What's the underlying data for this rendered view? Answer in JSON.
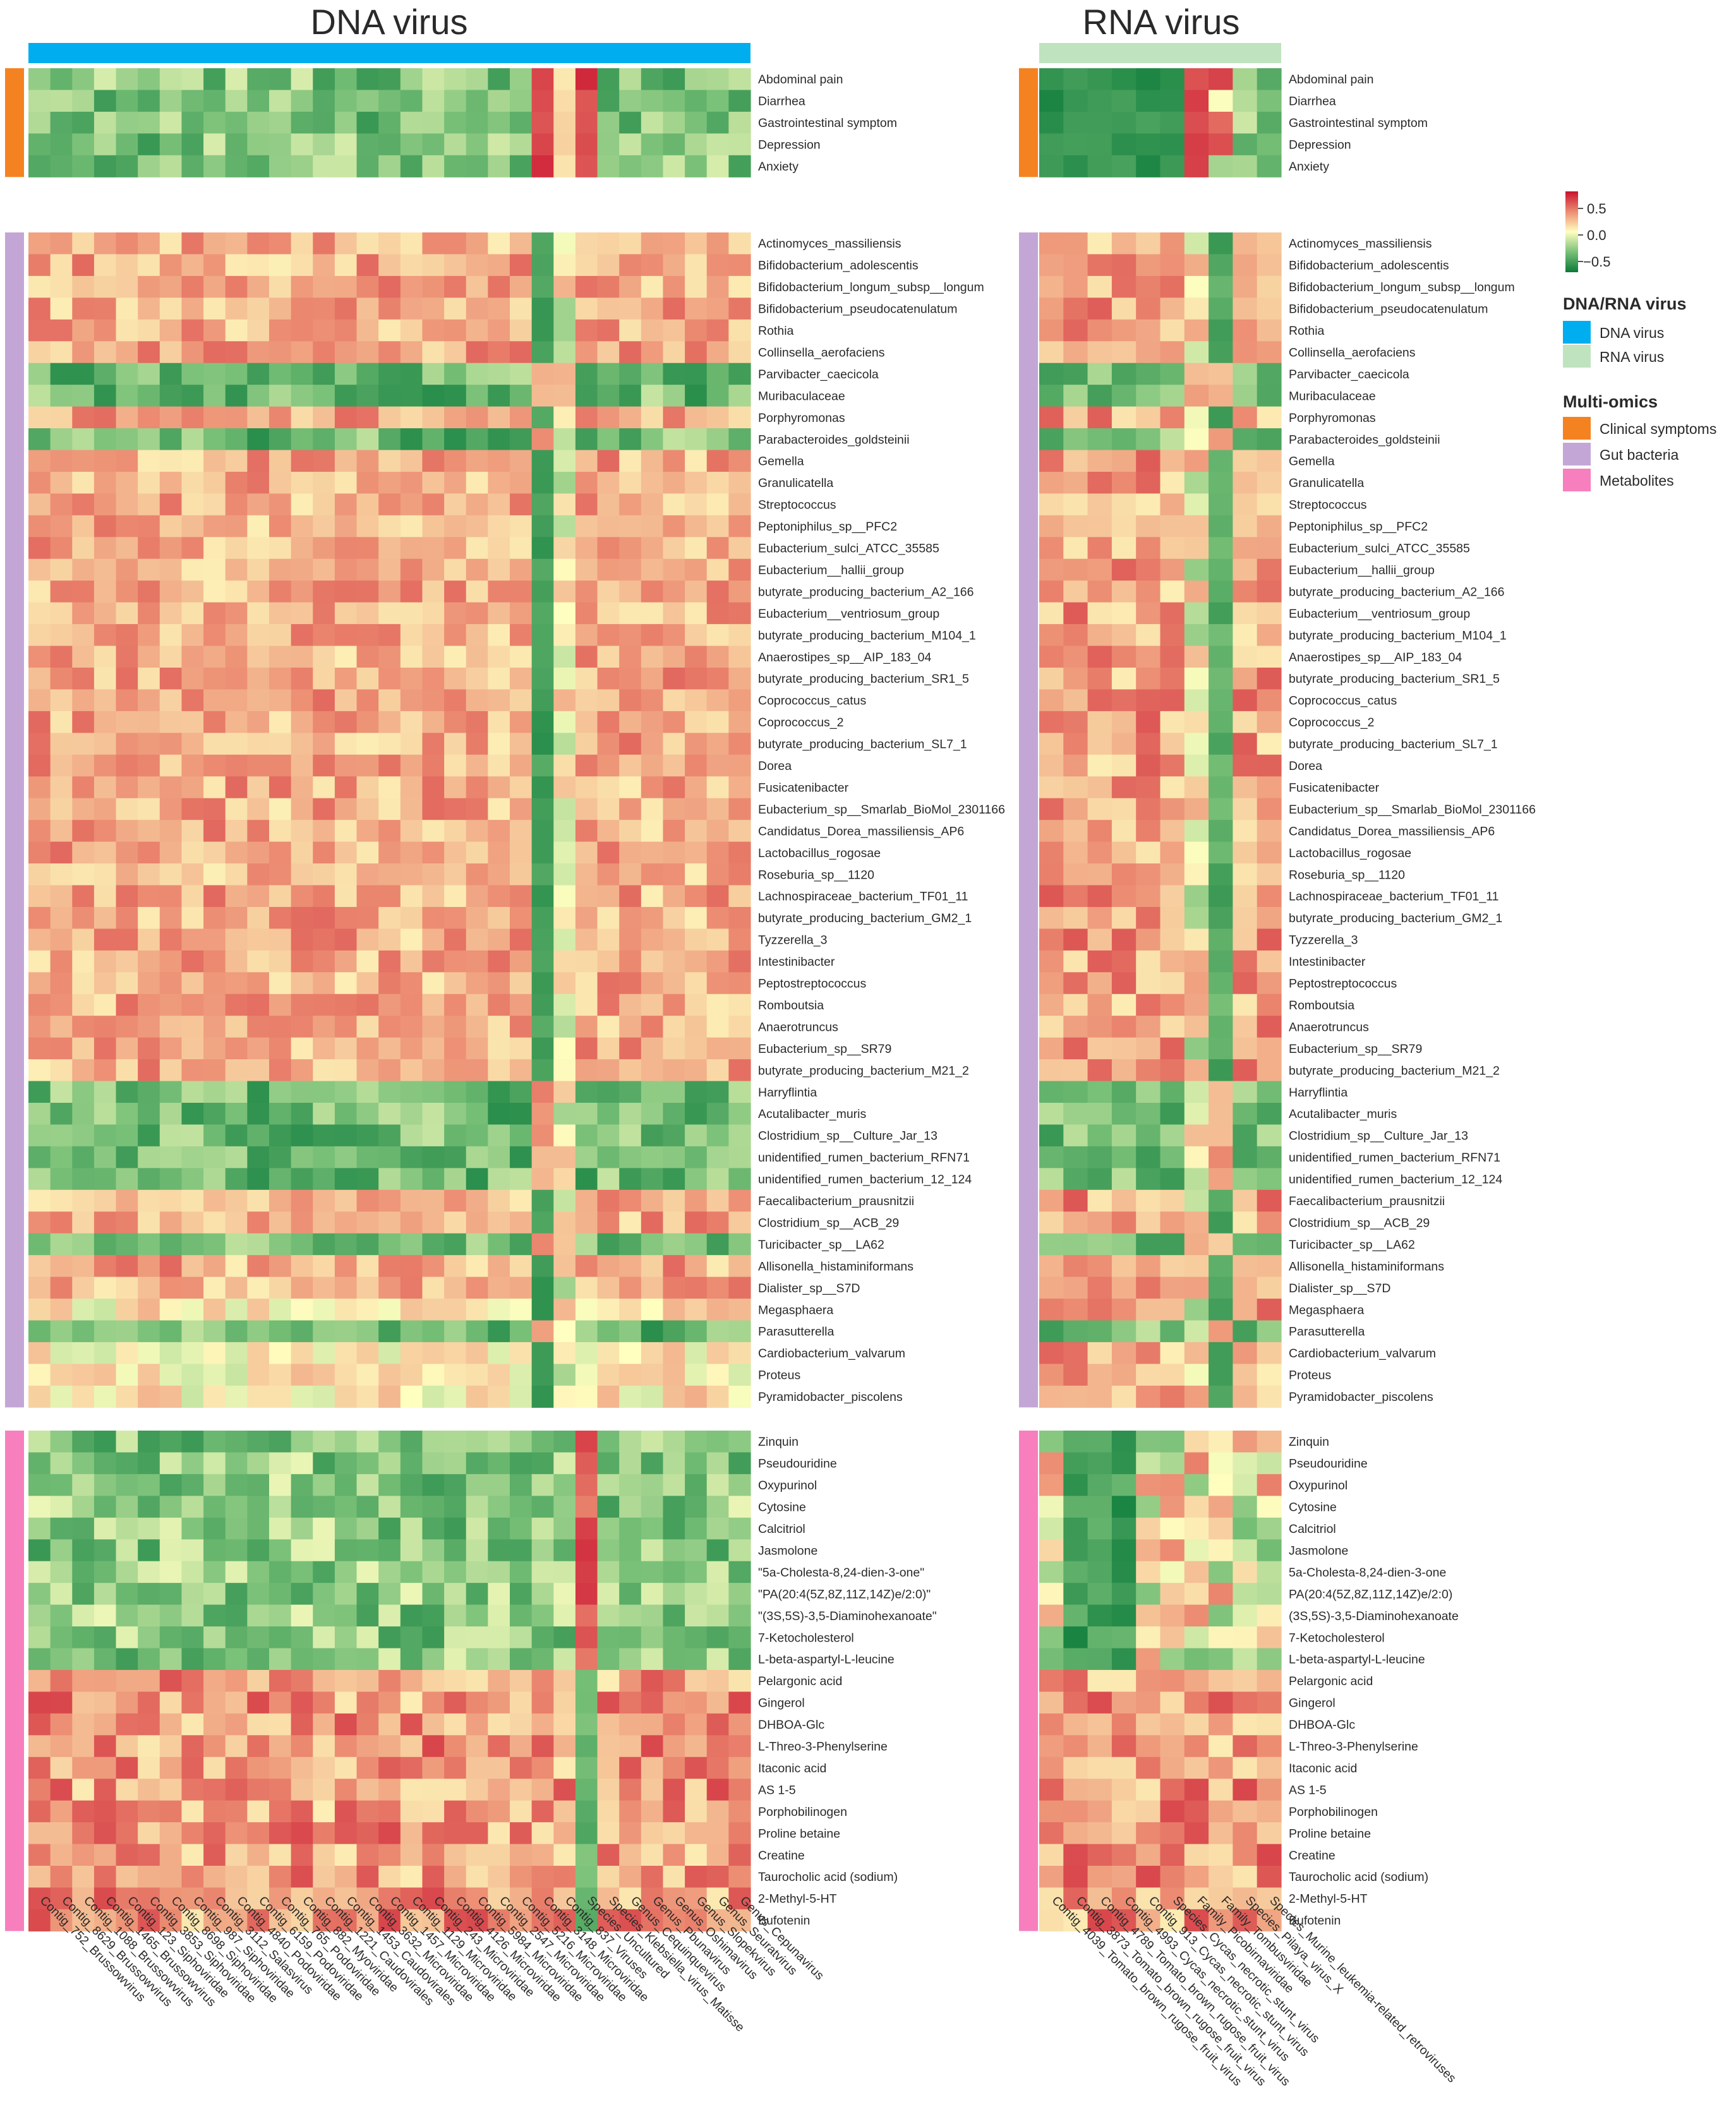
{
  "chart_data": [
    {
      "type": "heatmap",
      "title": "DNA virus",
      "columns": [
        "Contig_752_Brussowvirus",
        "Contig_8629_Brussowvirus",
        "Contig_1088_Brussowvirus",
        "Contig_1465_Brussowvirus",
        "Contig_123_Siphoviridae",
        "Contig_3853_Siphoviridae",
        "Contig_8698_Siphoviridae",
        "Contig_987_Siphoviridae",
        "Contig_3112_Salasvirus",
        "Contig_4840_Podoviridae",
        "Contig_6159_Podoviridae",
        "Contig_765_Podoviridae",
        "Contig_882_Myoviridae",
        "Contig_1221_Caudovirales",
        "Contig_1453_Caudovirales",
        "Contig_3632_Microviridae",
        "Contig_1457_Microviridae",
        "Contig_1129_Microviridae",
        "Contig_243_Microviridae",
        "Contig_4126_Microviridae",
        "Contig_5984_Microviridae",
        "Contig_2547_Microviridae",
        "Contig_5216_Microviridae",
        "Contig_3148_Microviridae",
        "Contig_837_Viruses",
        "Species_Uncultured",
        "Species_Klebsiella_virus_Matisse",
        "Genus_Cequinquevirus",
        "Genus_Pbunavirus",
        "Genus_Oshimavirus",
        "Genus_Slopekvirus",
        "Genus_Seuratvirus",
        "Genus_Cepunavirus"
      ]
    },
    {
      "type": "heatmap",
      "title": "RNA virus",
      "columns": [
        "Contig_4039_Tomato_brown_rugose_fruit_virus",
        "Contig_3873_Tomato_brown_rugose_fruit_virus",
        "Contig_4789_Tomato_brown_rugose_fruit_virus",
        "Contig_4993_Cycas_necrotic_stunt_virus",
        "Contig_913_Cycas_necrotic_stunt_virus",
        "Species_Cycas_necrotic_stunt_virus",
        "Family_Picobirnaviridae",
        "Family_Tombusviridae",
        "Species_Pilaya_virus_X",
        "Species_Murine_leukemia-related_retroviruses"
      ]
    }
  ],
  "rows": {
    "clinical": [
      "Abdominal pain",
      "Diarrhea",
      "Gastrointestinal symptom",
      "Depression",
      "Anxiety"
    ],
    "bacteria": [
      "Actinomyces_massiliensis",
      "Bifidobacterium_adolescentis",
      "Bifidobacterium_longum_subsp__longum",
      "Bifidobacterium_pseudocatenulatum",
      "Rothia",
      "Collinsella_aerofaciens",
      "Parvibacter_caecicola",
      "Muribaculaceae",
      "Porphyromonas",
      "Parabacteroides_goldsteinii",
      "Gemella",
      "Granulicatella",
      "Streptococcus",
      "Peptoniphilus_sp__PFC2",
      "Eubacterium_sulci_ATCC_35585",
      "Eubacterium__hallii_group",
      "butyrate_producing_bacterium_A2_166",
      "Eubacterium__ventriosum_group",
      "butyrate_producing_bacterium_M104_1",
      "Anaerostipes_sp__AIP_183_04",
      "butyrate_producing_bacterium_SR1_5",
      "Coprococcus_catus",
      "Coprococcus_2",
      "butyrate_producing_bacterium_SL7_1",
      "Dorea",
      "Fusicatenibacter",
      "Eubacterium_sp__Smarlab_BioMol_2301166",
      "Candidatus_Dorea_massiliensis_AP6",
      "Lactobacillus_rogosae",
      "Roseburia_sp__1120",
      "Lachnospiraceae_bacterium_TF01_11",
      "butyrate_producing_bacterium_GM2_1",
      "Tyzzerella_3",
      "Intestinibacter",
      "Peptostreptococcus",
      "Romboutsia",
      "Anaerotruncus",
      "Eubacterium_sp__SR79",
      "butyrate_producing_bacterium_M21_2",
      "Harryflintia",
      "Acutalibacter_muris",
      "Clostridium_sp__Culture_Jar_13",
      "unidentified_rumen_bacterium_RFN71",
      "unidentified_rumen_bacterium_12_124",
      "Faecalibacterium_prausnitzii",
      "Clostridium_sp__ACB_29",
      "Turicibacter_sp__LA62",
      "Allisonella_histaminiformans",
      "Dialister_sp__S7D",
      "Megasphaera",
      "Parasutterella",
      "Cardiobacterium_valvarum",
      "Proteus",
      "Pyramidobacter_piscolens"
    ],
    "metabolites_dna": [
      "Zinquin",
      "Pseudouridine",
      "Oxypurinol",
      "Cytosine",
      "Calcitriol",
      "Jasmolone",
      "\"5a-Cholesta-8,24-dien-3-one\"",
      "\"PA(20:4(5Z,8Z,11Z,14Z)e/2:0)\"",
      "\"(3S,5S)-3,5-Diaminohexanoate\"",
      "7-Ketocholesterol",
      "L-beta-aspartyl-L-leucine",
      "Pelargonic acid",
      "Gingerol",
      "DHBOA-Glc",
      "L-Threo-3-Phenylserine",
      "Itaconic acid",
      "AS 1-5",
      "Porphobilinogen",
      "Proline betaine",
      "Creatine",
      "Taurocholic acid (sodium)",
      "2-Methyl-5-HT",
      "Bufotenin"
    ],
    "metabolites_rna": [
      "Zinquin",
      "Pseudouridine",
      "Oxypurinol",
      "Cytosine",
      "Calcitriol",
      "Jasmolone",
      "5a-Cholesta-8,24-dien-3-one",
      "PA(20:4(5Z,8Z,11Z,14Z)e/2:0)",
      "(3S,5S)-3,5-Diaminohexanoate",
      "7-Ketocholesterol",
      "L-beta-aspartyl-L-leucine",
      "Pelargonic acid",
      "Gingerol",
      "DHBOA-Glc",
      "L-Threo-3-Phenylserine",
      "Itaconic acid",
      "AS 1-5",
      "Porphobilinogen",
      "Proline betaine",
      "Creatine",
      "Taurocholic acid (sodium)",
      "2-Methyl-5-HT",
      "Bufotenin"
    ]
  },
  "colorbar": {
    "ticks": [
      "0.5",
      "0.0",
      "−0.5"
    ],
    "range": [
      -0.7,
      0.7
    ]
  },
  "legend": {
    "virus_title": "DNA/RNA virus",
    "virus_items": [
      {
        "label": "DNA virus",
        "color": "#00AEEF"
      },
      {
        "label": "RNA virus",
        "color": "#BFE3BF"
      }
    ],
    "omics_title": "Multi-omics",
    "omics_items": [
      {
        "label": "Clinical symptoms",
        "color": "#F58220"
      },
      {
        "label": "Gut bacteria",
        "color": "#C3A6D6"
      },
      {
        "label": "Metabolites",
        "color": "#F77FBE"
      }
    ]
  },
  "colors": {
    "dna": "#00AEEF",
    "rna": "#BFE3BF",
    "clinical": "#F58220",
    "bacteria": "#C3A6D6",
    "metabolites": "#F77FBE",
    "scale_low": "#0A7A3A",
    "scale_mid": "#FFFFC0",
    "scale_high": "#C9102E"
  }
}
